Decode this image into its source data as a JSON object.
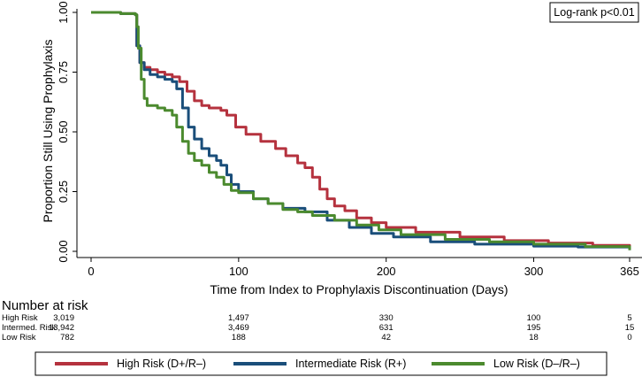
{
  "chart_data": {
    "type": "line",
    "ylabel": "Proportion Still Using Prophylaxis",
    "xlabel": "Time from Index to Prophylaxis Discontinuation (Days)",
    "xlim": [
      0,
      365
    ],
    "ylim": [
      0,
      1
    ],
    "x_ticks": [
      0,
      100,
      200,
      300,
      365
    ],
    "y_ticks": [
      "0.00",
      "0.25",
      "0.50",
      "0.75",
      "1.00"
    ],
    "y_tick_values": [
      0,
      0.25,
      0.5,
      0.75,
      1.0
    ],
    "annotation": "Log-rank p<0.01",
    "grid": false,
    "legend_position": "bottom",
    "series": [
      {
        "name": "High Risk (D+/R–)",
        "color": "#b5323e",
        "points": [
          [
            0,
            1.0
          ],
          [
            20,
            0.995
          ],
          [
            30,
            0.99
          ],
          [
            31,
            0.86
          ],
          [
            33,
            0.79
          ],
          [
            36,
            0.77
          ],
          [
            40,
            0.76
          ],
          [
            45,
            0.75
          ],
          [
            50,
            0.74
          ],
          [
            55,
            0.73
          ],
          [
            60,
            0.71
          ],
          [
            65,
            0.67
          ],
          [
            70,
            0.63
          ],
          [
            75,
            0.61
          ],
          [
            80,
            0.6
          ],
          [
            88,
            0.59
          ],
          [
            92,
            0.57
          ],
          [
            98,
            0.52
          ],
          [
            105,
            0.49
          ],
          [
            115,
            0.46
          ],
          [
            125,
            0.43
          ],
          [
            132,
            0.4
          ],
          [
            140,
            0.37
          ],
          [
            145,
            0.35
          ],
          [
            150,
            0.31
          ],
          [
            155,
            0.26
          ],
          [
            160,
            0.22
          ],
          [
            165,
            0.19
          ],
          [
            172,
            0.17
          ],
          [
            180,
            0.14
          ],
          [
            190,
            0.12
          ],
          [
            200,
            0.1
          ],
          [
            220,
            0.08
          ],
          [
            250,
            0.06
          ],
          [
            280,
            0.045
          ],
          [
            310,
            0.035
          ],
          [
            340,
            0.025
          ],
          [
            365,
            0.01
          ]
        ]
      },
      {
        "name": "Intermediate Risk (R+)",
        "color": "#1a4e7a",
        "points": [
          [
            0,
            1.0
          ],
          [
            20,
            0.995
          ],
          [
            30,
            0.99
          ],
          [
            31,
            0.86
          ],
          [
            33,
            0.79
          ],
          [
            36,
            0.76
          ],
          [
            40,
            0.74
          ],
          [
            45,
            0.73
          ],
          [
            50,
            0.72
          ],
          [
            55,
            0.71
          ],
          [
            58,
            0.68
          ],
          [
            62,
            0.6
          ],
          [
            66,
            0.52
          ],
          [
            70,
            0.47
          ],
          [
            75,
            0.43
          ],
          [
            80,
            0.4
          ],
          [
            85,
            0.38
          ],
          [
            88,
            0.36
          ],
          [
            92,
            0.32
          ],
          [
            95,
            0.28
          ],
          [
            100,
            0.25
          ],
          [
            110,
            0.22
          ],
          [
            120,
            0.2
          ],
          [
            130,
            0.18
          ],
          [
            145,
            0.165
          ],
          [
            160,
            0.13
          ],
          [
            175,
            0.1
          ],
          [
            190,
            0.075
          ],
          [
            205,
            0.06
          ],
          [
            230,
            0.04
          ],
          [
            260,
            0.03
          ],
          [
            300,
            0.022
          ],
          [
            330,
            0.018
          ],
          [
            365,
            0.005
          ]
        ]
      },
      {
        "name": "Low Risk (D–/R–)",
        "color": "#4b8a2e",
        "points": [
          [
            0,
            1.0
          ],
          [
            20,
            0.995
          ],
          [
            30,
            0.99
          ],
          [
            31,
            0.94
          ],
          [
            32,
            0.85
          ],
          [
            34,
            0.72
          ],
          [
            36,
            0.64
          ],
          [
            38,
            0.61
          ],
          [
            45,
            0.6
          ],
          [
            50,
            0.59
          ],
          [
            55,
            0.57
          ],
          [
            58,
            0.52
          ],
          [
            62,
            0.46
          ],
          [
            66,
            0.41
          ],
          [
            70,
            0.38
          ],
          [
            75,
            0.36
          ],
          [
            80,
            0.33
          ],
          [
            85,
            0.31
          ],
          [
            90,
            0.28
          ],
          [
            95,
            0.255
          ],
          [
            100,
            0.245
          ],
          [
            110,
            0.22
          ],
          [
            120,
            0.2
          ],
          [
            130,
            0.175
          ],
          [
            140,
            0.165
          ],
          [
            150,
            0.15
          ],
          [
            165,
            0.13
          ],
          [
            180,
            0.11
          ],
          [
            195,
            0.09
          ],
          [
            210,
            0.07
          ],
          [
            240,
            0.05
          ],
          [
            270,
            0.04
          ],
          [
            300,
            0.03
          ],
          [
            335,
            0.02
          ],
          [
            365,
            0.005
          ]
        ]
      }
    ],
    "risk_table": {
      "title": "Number at risk",
      "times": [
        0,
        100,
        200,
        300,
        365
      ],
      "rows": [
        {
          "label": "High Risk",
          "values": [
            "3,019",
            "1,497",
            "330",
            "100",
            "5"
          ]
        },
        {
          "label": "Intermed. Risk",
          "values": [
            "13,942",
            "3,469",
            "631",
            "195",
            "15"
          ]
        },
        {
          "label": "Low Risk",
          "values": [
            "782",
            "188",
            "42",
            "18",
            "0"
          ]
        }
      ]
    }
  }
}
